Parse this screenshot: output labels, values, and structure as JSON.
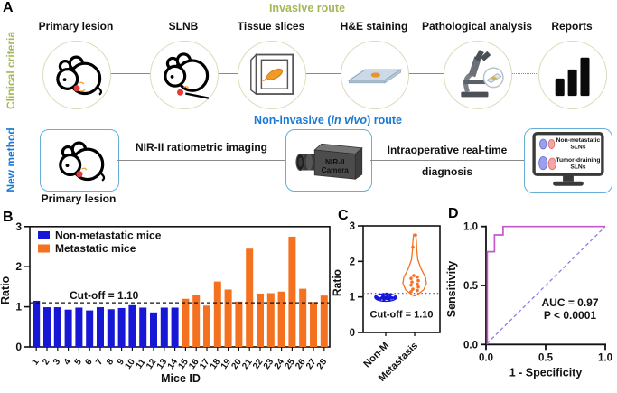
{
  "colors": {
    "non_metastatic_blue": "#1717d6",
    "metastatic_orange": "#f4711f",
    "route_green": "#a3b85a",
    "route_blue": "#1a79d4",
    "box_border_blue": "#66aed6",
    "circle_border": "#d9ddbb",
    "roc_curve": "#c45ac8",
    "roc_diagonal": "#8b7fe0",
    "lesion_red": "#e73b3b",
    "monitor_text_red": "#dd2222"
  },
  "panelA": {
    "label": "A",
    "side_top": "Clinical criteria",
    "side_bottom": "New method",
    "invasive_title": "Invasive route",
    "steps": [
      "Primary lesion",
      "SLNB",
      "Tissue slices",
      "H&E staining",
      "Pathological analysis",
      "Reports"
    ],
    "step_icons": [
      "mouse-icon",
      "mouse-scalpel-icon",
      "tissue-slices-icon",
      "he-slide-icon",
      "microscope-icon",
      "reports-bars-icon"
    ],
    "noninvasive_title_pre": "Non-invasive (",
    "noninvasive_title_italic": "in vivo",
    "noninvasive_title_post": ") route",
    "mouse_box_label": "Primary lesion",
    "arrow1_label": "NIR-II ratiometric imaging",
    "camera": [
      "NIR-II",
      "Camera"
    ],
    "arrow2_line1": "Intraoperative real-time",
    "arrow2_line2": "diagnosis",
    "monitor": {
      "line1": [
        "Non-metastatic",
        "SLNs"
      ],
      "line2": [
        "Tumor-draining",
        "SLNs"
      ]
    }
  },
  "panelB": {
    "label": "B"
  },
  "panelC": {
    "label": "C"
  },
  "panelD": {
    "label": "D"
  },
  "chart_data": [
    {
      "panel": "B",
      "type": "bar",
      "xlabel": "Mice ID",
      "ylabel": "Ratio",
      "ylim": [
        0,
        3
      ],
      "yticks": [
        "0",
        "1",
        "2",
        "3"
      ],
      "categories": [
        "1",
        "2",
        "3",
        "4",
        "5",
        "6",
        "7",
        "8",
        "9",
        "10",
        "11",
        "12",
        "13",
        "14",
        "15",
        "16",
        "17",
        "18",
        "19",
        "20",
        "21",
        "22",
        "23",
        "24",
        "25",
        "26",
        "27",
        "28"
      ],
      "values": [
        1.15,
        0.99,
        0.99,
        0.93,
        0.98,
        0.91,
        0.99,
        0.94,
        0.97,
        1.04,
        0.98,
        0.86,
        0.98,
        0.98,
        1.2,
        1.3,
        1.03,
        1.63,
        1.43,
        1.13,
        2.45,
        1.33,
        1.34,
        1.38,
        2.75,
        1.45,
        1.12,
        1.28
      ],
      "groups": [
        {
          "name": "Non-metastatic mice",
          "color": "#1717d6",
          "count": 14
        },
        {
          "name": "Metastatic mice",
          "color": "#f4711f",
          "count": 14
        }
      ],
      "cutoff": {
        "value": 1.1,
        "label": "Cut-off = 1.10"
      },
      "legend_position": "top-left",
      "grid": false
    },
    {
      "panel": "C",
      "type": "violin",
      "ylabel": "Ratio",
      "ylim": [
        0,
        3
      ],
      "yticks": [
        "0",
        "1",
        "2",
        "3"
      ],
      "categories": [
        "Non-M",
        "Metastasis"
      ],
      "cutoff": {
        "value": 1.1,
        "label": "Cut-off = 1.10"
      },
      "series": [
        {
          "name": "Non-M",
          "color": "#1717d6",
          "points": [
            0.93,
            0.94,
            0.95,
            0.96,
            0.97,
            0.97,
            0.98,
            0.98,
            0.99,
            1.0,
            1.0,
            1.02,
            1.04,
            1.08
          ]
        },
        {
          "name": "Metastasis",
          "color": "#f4711f",
          "points": [
            1.15,
            1.18,
            1.22,
            1.28,
            1.33,
            1.36,
            1.42,
            1.46,
            1.52,
            1.56,
            1.6,
            2.4,
            2.74
          ],
          "violin_range": [
            1.03,
            2.76
          ]
        }
      ],
      "grid": false
    },
    {
      "panel": "D",
      "type": "line",
      "xlabel": "1 - Specificity",
      "ylabel": "Sensitivity",
      "xlim": [
        0,
        1
      ],
      "ylim": [
        0,
        1
      ],
      "xticks": [
        "0.0",
        "0.5",
        "1.0"
      ],
      "yticks": [
        "0.0",
        "0.5",
        "1.0"
      ],
      "series": [
        {
          "name": "ROC curve",
          "color": "#c45ac8",
          "x": [
            0,
            0,
            0.071,
            0.071,
            0.143,
            0.143,
            1.0
          ],
          "y": [
            0,
            0.786,
            0.786,
            0.929,
            0.929,
            1.0,
            1.0
          ]
        }
      ],
      "diagonal": {
        "style": "dashed",
        "color": "#8b7fe0"
      },
      "annotations": [
        "AUC = 0.97",
        "P < 0.0001"
      ],
      "grid": false
    }
  ]
}
